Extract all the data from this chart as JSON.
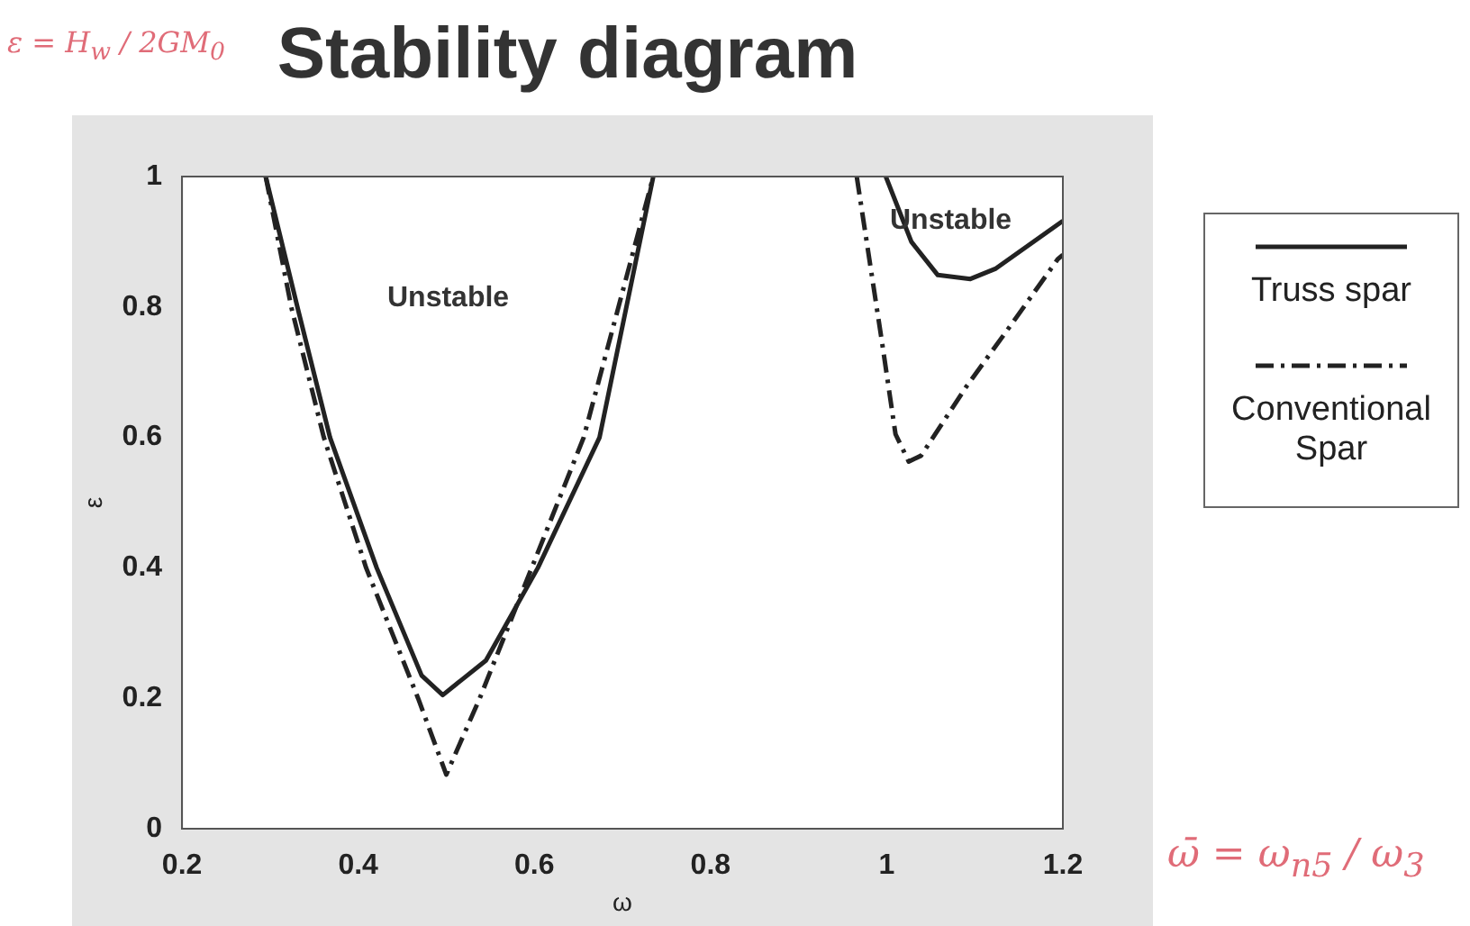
{
  "chart_data": {
    "type": "line",
    "title": "Stability diagram",
    "xlabel": "ω",
    "ylabel": "ε",
    "xlim": [
      0.2,
      1.2
    ],
    "ylim": [
      0,
      1
    ],
    "xticks": [
      0.2,
      0.4,
      0.6,
      0.8,
      1,
      1.2
    ],
    "yticks": [
      0,
      0.2,
      0.4,
      0.6,
      0.8,
      1
    ],
    "grid": false,
    "legend": "right",
    "marker": "none",
    "annotations": [
      "Unstable",
      "Unstable",
      "ε = H$_{w}$ / 2GM$_{0}$",
      "ω̄ = ω$_{n5}$ / ω$_{3}$"
    ],
    "series": [
      {
        "name": "Truss spar",
        "color": "#222222",
        "line_style": "solid",
        "x": [
          0.295,
          0.331,
          0.368,
          0.421,
          0.472,
          0.496,
          0.545,
          0.604,
          0.674,
          0.735,
          null,
          0.999,
          1.028,
          1.058,
          1.095,
          1.124,
          1.2
        ],
        "values": [
          1,
          0.8,
          0.6,
          0.4,
          0.235,
          0.205,
          0.258,
          0.4,
          0.6,
          1,
          null,
          1,
          0.9,
          0.849,
          0.843,
          0.859,
          0.932
        ]
      },
      {
        "name": "Conventional Spar",
        "color": "#222222",
        "line_style": "dashed",
        "x": [
          0.295,
          0.324,
          0.361,
          0.409,
          0.468,
          0.5,
          0.538,
          0.597,
          0.656,
          0.735,
          null,
          0.966,
          0.995,
          1.01,
          1.025,
          1.039,
          1.091,
          1.143,
          1.194,
          1.2
        ],
        "values": [
          1,
          0.8,
          0.6,
          0.4,
          0.2,
          0.083,
          0.2,
          0.4,
          0.6,
          1,
          null,
          1,
          0.743,
          0.605,
          0.563,
          0.572,
          0.679,
          0.776,
          0.873,
          0.88
        ]
      }
    ]
  }
}
